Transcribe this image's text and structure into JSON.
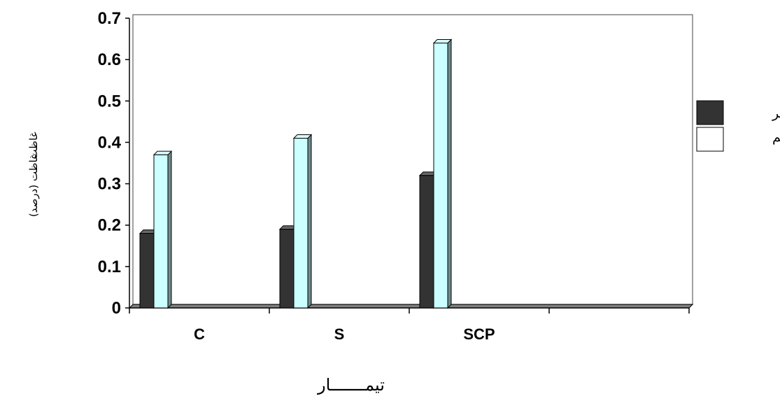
{
  "chart_data": {
    "type": "bar",
    "title": "",
    "xlabel": "تیمـــــــار",
    "ylabel": "غاظت (درصد)",
    "ylabel_overlap": "غاظت",
    "categories": [
      "C",
      "S",
      "SCP",
      ""
    ],
    "series": [
      {
        "name": "فسفر",
        "values": [
          0.18,
          0.19,
          0.32,
          null
        ],
        "color": "#333333"
      },
      {
        "name": "پتاسیم",
        "values": [
          0.37,
          0.41,
          0.64,
          null
        ],
        "color": "#ccffff"
      }
    ],
    "ylim": [
      0,
      0.7
    ],
    "yticks": [
      "0",
      "0.1",
      "0.2",
      "0.3",
      "0.4",
      "0.5",
      "0.6",
      "0.7"
    ],
    "grid": false,
    "legend_position": "right",
    "colors": {
      "plot_background": "#ffffff",
      "floor": "#808080",
      "wall_border": "#808080"
    }
  }
}
